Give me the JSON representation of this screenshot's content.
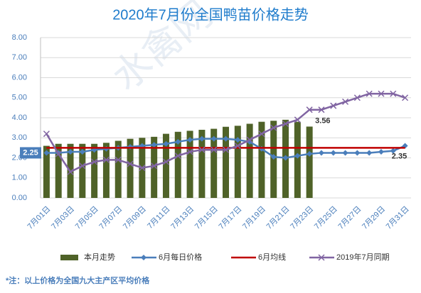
{
  "chart_data": {
    "type": "bar",
    "title": "2020年7月份全国鸭苗价格走势",
    "watermark": "水禽网",
    "note": "*注：以上价格为全国九大主产区平均价格",
    "categories": [
      "7月01日",
      null,
      "7月03日",
      null,
      "7月05日",
      null,
      "7月07日",
      null,
      "7月09日",
      null,
      "7月11日",
      null,
      "7月13日",
      null,
      "7月15日",
      null,
      "7月17日",
      null,
      "7月19日",
      null,
      "7月21日",
      null,
      "7月23日",
      null,
      "7月25日",
      null,
      "7月27日",
      null,
      "7月29日",
      null,
      "7月31日"
    ],
    "ylim": [
      0,
      8
    ],
    "yticks": [
      {
        "value": 0,
        "label": "0.00"
      },
      {
        "value": 1,
        "label": "1.00"
      },
      {
        "value": 2,
        "label": "2.00"
      },
      {
        "value": 3,
        "label": "3.00"
      },
      {
        "value": 4,
        "label": "4.00"
      },
      {
        "value": 5,
        "label": "5.00"
      },
      {
        "value": 6,
        "label": "6.00"
      },
      {
        "value": 7,
        "label": "7.00"
      },
      {
        "value": 8,
        "label": "8.00"
      }
    ],
    "grid": true,
    "legend": "bottom",
    "series": [
      {
        "name": "本月走势",
        "type": "bar",
        "color": "#4f6228",
        "values": [
          2.6,
          2.7,
          2.7,
          2.7,
          2.7,
          2.75,
          2.85,
          2.95,
          3.0,
          3.05,
          3.2,
          3.3,
          3.35,
          3.4,
          3.45,
          3.55,
          3.6,
          3.7,
          3.8,
          3.85,
          3.9,
          3.8,
          3.56,
          null,
          null,
          null,
          null,
          null,
          null,
          null,
          null
        ],
        "value_labels": [
          null,
          null,
          null,
          null,
          null,
          null,
          null,
          null,
          null,
          null,
          null,
          null,
          null,
          null,
          null,
          null,
          null,
          null,
          null,
          null,
          null,
          null,
          "3.56",
          null,
          null,
          null,
          null,
          null,
          null,
          null,
          null
        ]
      },
      {
        "name": "6月每日价格",
        "type": "line",
        "marker": "diamond",
        "color": "#4a7ebb",
        "values": [
          2.25,
          2.25,
          2.3,
          2.3,
          2.4,
          2.45,
          2.5,
          2.55,
          2.6,
          2.65,
          2.7,
          2.8,
          2.9,
          2.95,
          2.95,
          2.95,
          2.9,
          2.8,
          2.45,
          2.05,
          2.0,
          2.1,
          2.2,
          2.25,
          2.25,
          2.25,
          2.25,
          2.25,
          2.3,
          2.35,
          2.6
        ],
        "value_labels": [
          "2.25",
          null,
          null,
          null,
          null,
          null,
          null,
          null,
          null,
          null,
          null,
          null,
          null,
          null,
          null,
          null,
          null,
          null,
          null,
          null,
          null,
          null,
          null,
          null,
          null,
          null,
          null,
          null,
          null,
          "2.35",
          null
        ]
      },
      {
        "name": "6月均线",
        "type": "line",
        "marker": "none",
        "color": "#c00000",
        "values": [
          2.5,
          2.5,
          2.5,
          2.5,
          2.5,
          2.5,
          2.5,
          2.5,
          2.5,
          2.5,
          2.5,
          2.5,
          2.5,
          2.5,
          2.5,
          2.5,
          2.5,
          2.5,
          2.5,
          2.5,
          2.5,
          2.5,
          2.5,
          2.5,
          2.5,
          2.5,
          2.5,
          2.5,
          2.5,
          2.5,
          2.5
        ]
      },
      {
        "name": "2019年7月同期",
        "type": "line",
        "marker": "x",
        "color": "#8064a2",
        "values": [
          3.2,
          2.2,
          1.3,
          1.6,
          1.8,
          1.9,
          1.9,
          1.7,
          1.5,
          1.6,
          1.8,
          2.1,
          2.3,
          2.4,
          2.4,
          2.4,
          2.6,
          2.9,
          3.2,
          3.5,
          3.7,
          3.9,
          4.4,
          4.4,
          4.6,
          4.8,
          5.0,
          5.2,
          5.2,
          5.2,
          5.0
        ]
      }
    ]
  }
}
